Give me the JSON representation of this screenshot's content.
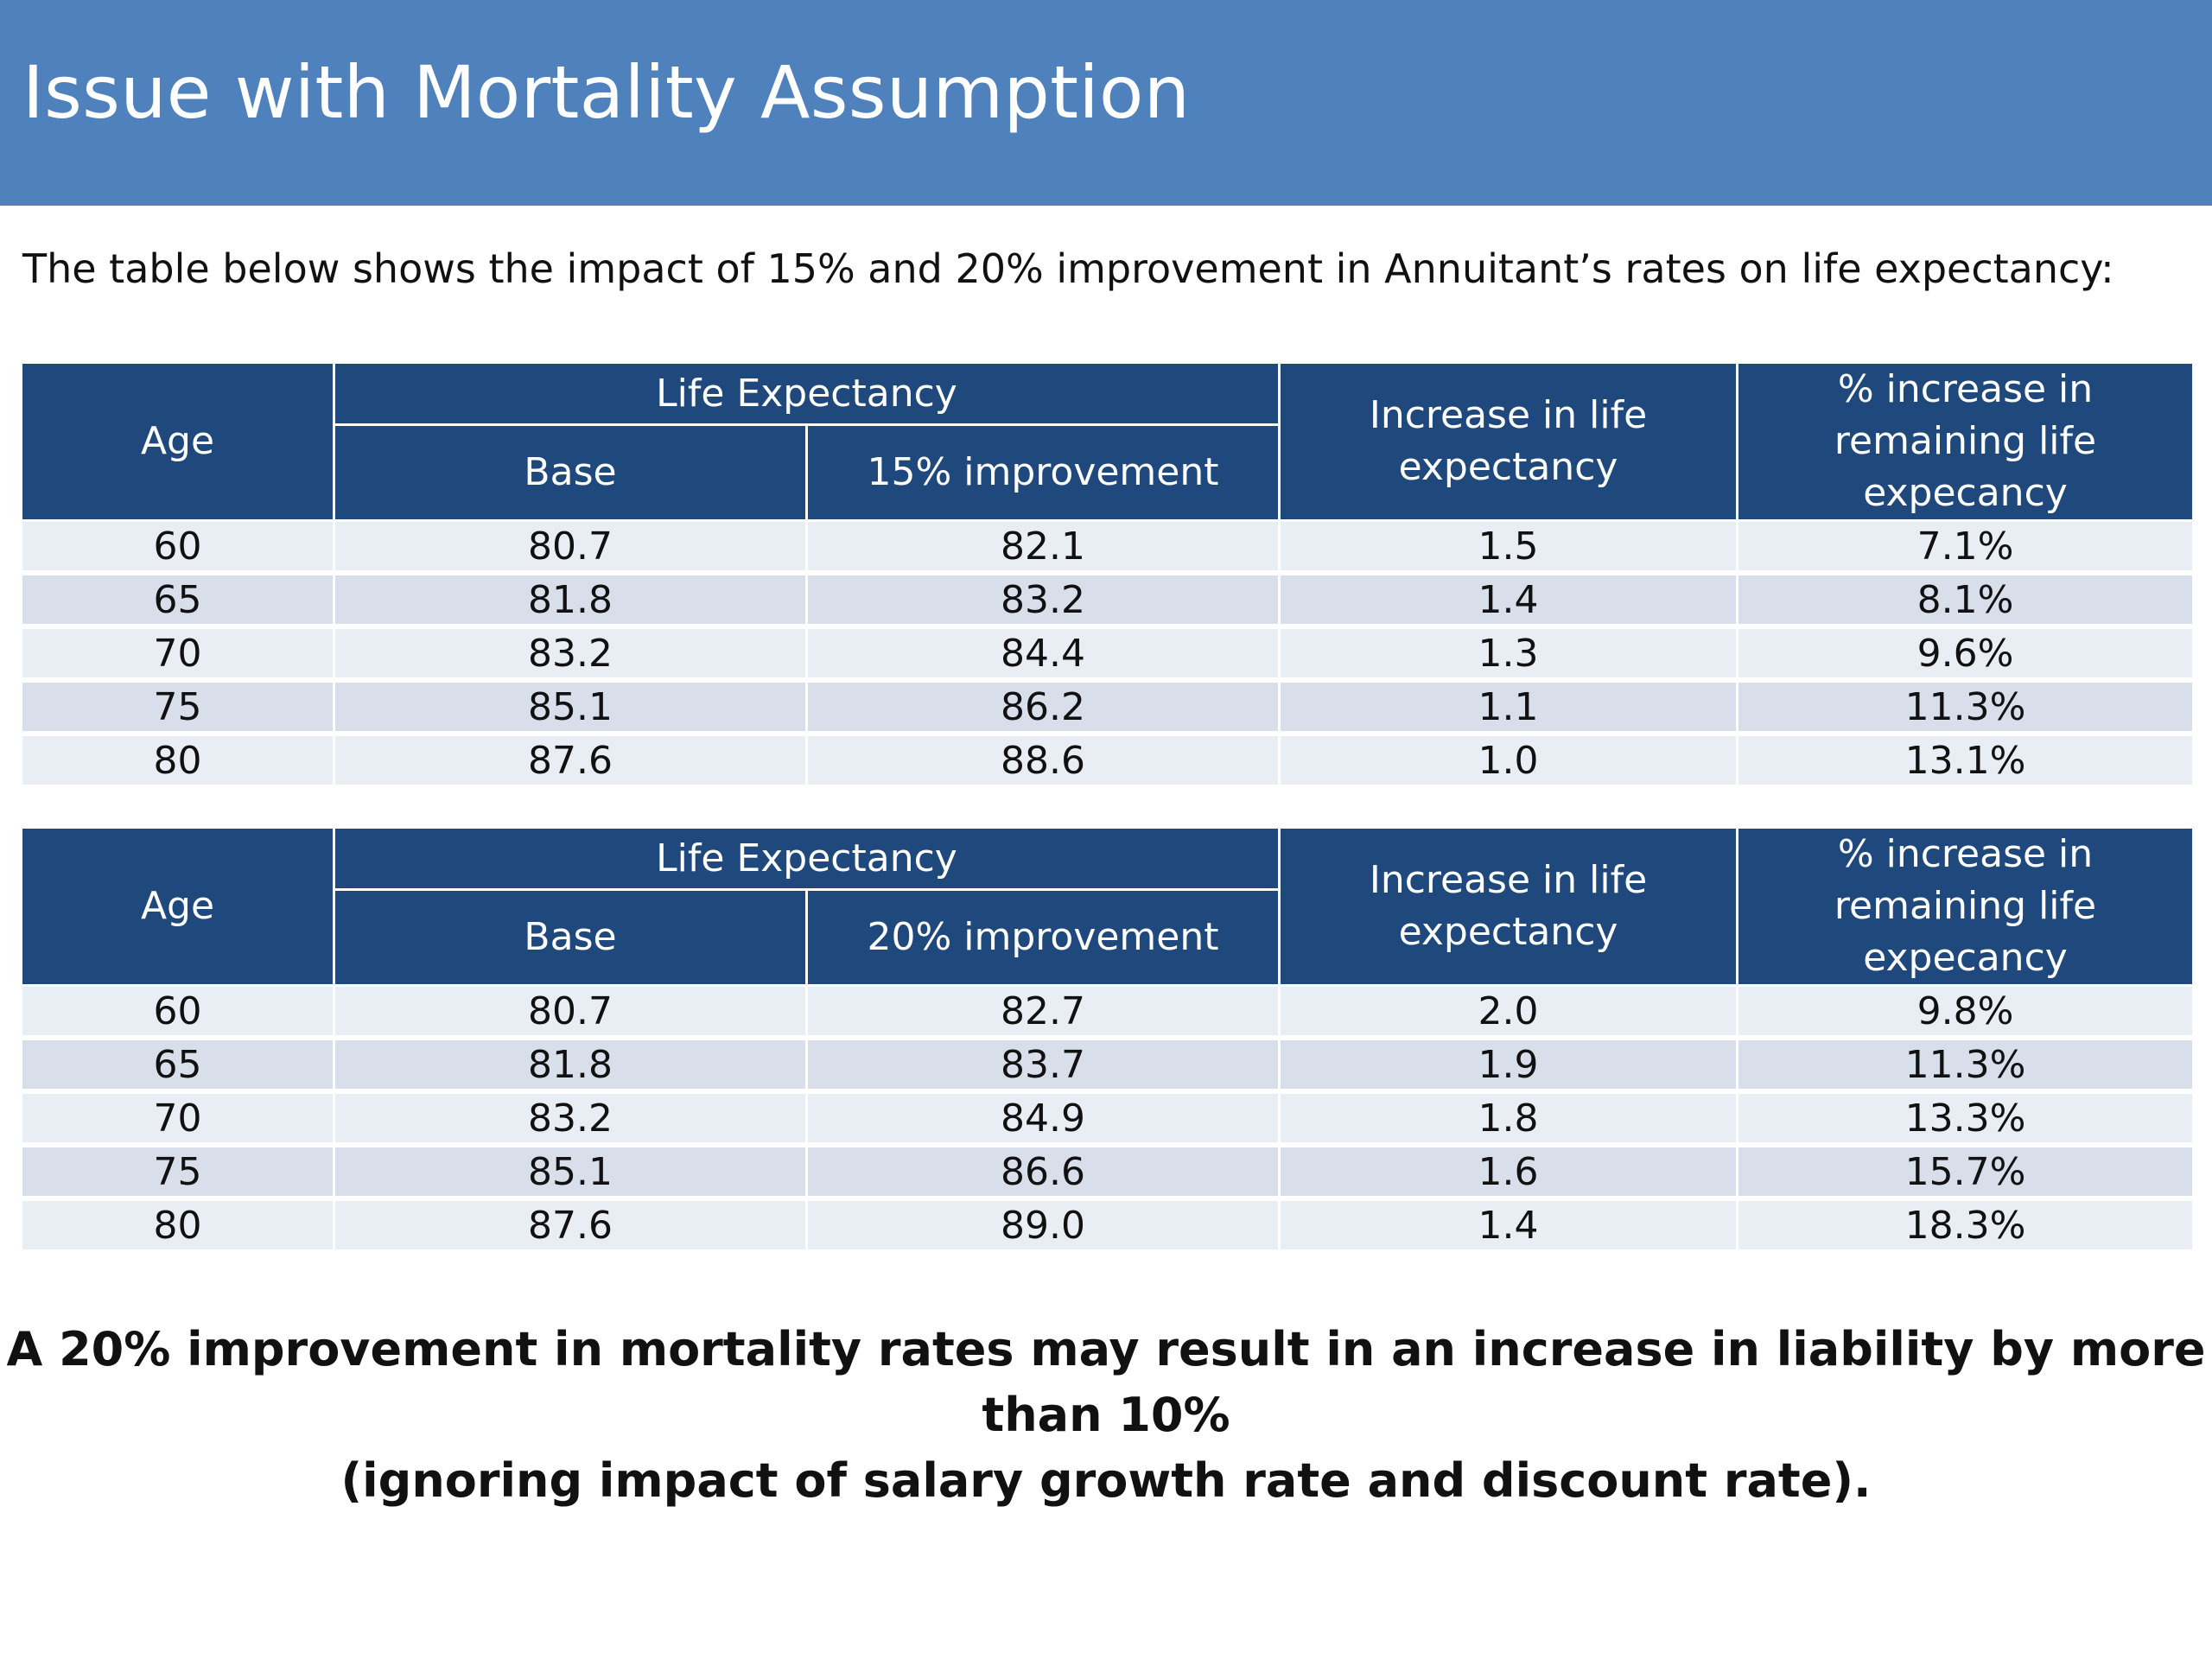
{
  "slide": {
    "title": "Issue with Mortality Assumption",
    "intro": "The table below shows the impact of 15% and 20% improvement in Annuitant’s rates on life expectancy:",
    "conclusion": [
      "A 20% improvement in mortality rates may result in an increase in liability by more than 10%",
      "(ignoring impact of salary growth rate and discount rate)."
    ]
  },
  "tables": [
    {
      "headers": {
        "age": "Age",
        "life_expectancy": "Life Expectancy",
        "base": "Base",
        "improved": "15% improvement",
        "increase": "Increase in life expectancy",
        "pct_increase": "% increase in remaining life expecancy"
      },
      "rows": [
        [
          "60",
          "80.7",
          "82.1",
          "1.5",
          "7.1%"
        ],
        [
          "65",
          "81.8",
          "83.2",
          "1.4",
          "8.1%"
        ],
        [
          "70",
          "83.2",
          "84.4",
          "1.3",
          "9.6%"
        ],
        [
          "75",
          "85.1",
          "86.2",
          "1.1",
          "11.3%"
        ],
        [
          "80",
          "87.6",
          "88.6",
          "1.0",
          "13.1%"
        ]
      ]
    },
    {
      "headers": {
        "age": "Age",
        "life_expectancy": "Life Expectancy",
        "base": "Base",
        "improved": "20% improvement",
        "increase": "Increase in life expectancy",
        "pct_increase": "% increase in remaining life expecancy"
      },
      "rows": [
        [
          "60",
          "80.7",
          "82.7",
          "2.0",
          "9.8%"
        ],
        [
          "65",
          "81.8",
          "83.7",
          "1.9",
          "11.3%"
        ],
        [
          "70",
          "83.2",
          "84.9",
          "1.8",
          "13.3%"
        ],
        [
          "75",
          "85.1",
          "86.6",
          "1.6",
          "15.7%"
        ],
        [
          "80",
          "87.6",
          "89.0",
          "1.4",
          "18.3%"
        ]
      ]
    }
  ]
}
